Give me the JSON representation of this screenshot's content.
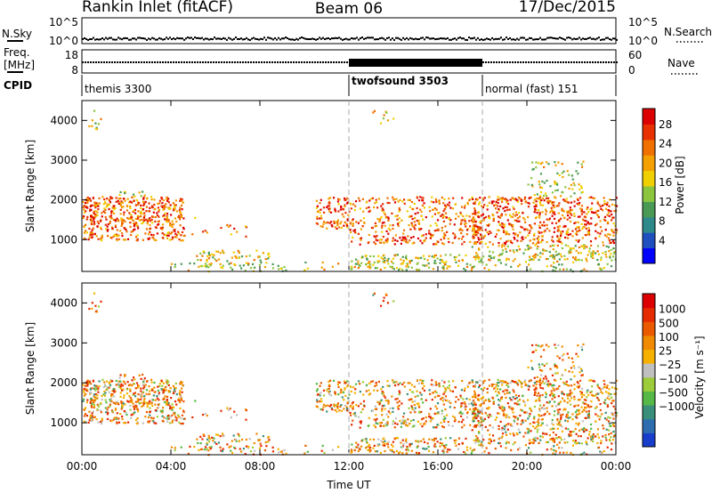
{
  "header": {
    "station": "Rankin Inlet (fitACF)",
    "beam": "Beam 06",
    "date": "17/Dec/2015"
  },
  "status_panels": {
    "nsky_label": "N.Sky",
    "nsearch_label": "N.Search",
    "nsky_ticks": [
      "10^5",
      "10^0"
    ],
    "nsearch_ticks": [
      "10^5",
      "10^0"
    ],
    "freq_label_line1": "Freq.",
    "freq_label_line2": "[MHz]",
    "freq_ticks": [
      "18",
      "8"
    ],
    "nave_label": "Nave",
    "nave_ticks": [
      "60",
      "0"
    ],
    "cpid_label": "CPID",
    "cpid_segments": [
      {
        "name": "themis 3300",
        "start_hour": 0
      },
      {
        "name": "twofsound 3503",
        "start_hour": 12
      },
      {
        "name": "normal (fast) 151",
        "start_hour": 18
      }
    ]
  },
  "chart_data": [
    {
      "type": "heatmap",
      "quantity": "power",
      "ylabel": "Slant Range [km]",
      "xlim": [
        0,
        24
      ],
      "ylim": [
        200,
        4500
      ],
      "yticks": [
        "1000",
        "2000",
        "3000",
        "4000"
      ],
      "colorbar": {
        "label": "Power [dB]",
        "ticks": [
          "4",
          "8",
          "12",
          "16",
          "20",
          "24",
          "28"
        ],
        "colors": [
          "#0000ff",
          "#1f4fbf",
          "#2e8a8a",
          "#4a9a55",
          "#8cc63f",
          "#f0d000",
          "#f4a000",
          "#f07000",
          "#e83000",
          "#dd0000"
        ]
      }
    },
    {
      "type": "heatmap",
      "quantity": "velocity",
      "ylabel": "Slant Range [km]",
      "xlabel": "Time UT",
      "xlim": [
        0,
        24
      ],
      "ylim": [
        200,
        4500
      ],
      "yticks": [
        "1000",
        "2000",
        "3000",
        "4000"
      ],
      "xticks": [
        "00:00",
        "04:00",
        "08:00",
        "12:00",
        "16:00",
        "20:00",
        "00:00"
      ],
      "colorbar": {
        "label": "Velocity [m s⁻¹]",
        "ticks": [
          "1000",
          "500",
          "100",
          "25",
          "−25",
          "−100",
          "−500",
          "−1000"
        ],
        "colors": [
          "#1a3ecc",
          "#2e6eb0",
          "#3a8f7a",
          "#56b846",
          "#9ccc3a",
          "#c0c0c0",
          "#f6b000",
          "#f08a00",
          "#ec5a00",
          "#e62a00",
          "#dd0000"
        ]
      }
    }
  ],
  "scatter_bands": [
    {
      "t0": 0.0,
      "t1": 4.6,
      "r0": 1000,
      "r1": 2100,
      "density": 1.0
    },
    {
      "t0": 1.5,
      "t1": 2.8,
      "r0": 1500,
      "r1": 2250,
      "density": 0.6
    },
    {
      "t0": 0.1,
      "t1": 1.0,
      "r0": 3800,
      "r1": 4300,
      "density": 0.25
    },
    {
      "t0": 4.8,
      "t1": 7.5,
      "r0": 1100,
      "r1": 1600,
      "density": 0.12
    },
    {
      "t0": 5.0,
      "t1": 8.5,
      "r0": 300,
      "r1": 750,
      "density": 0.55
    },
    {
      "t0": 3.5,
      "t1": 11.5,
      "r0": 220,
      "r1": 450,
      "density": 0.2
    },
    {
      "t0": 10.5,
      "t1": 12.0,
      "r0": 1300,
      "r1": 2100,
      "density": 0.8
    },
    {
      "t0": 12.0,
      "t1": 18.0,
      "r0": 900,
      "r1": 2100,
      "density": 0.6
    },
    {
      "t0": 12.0,
      "t1": 18.0,
      "r0": 250,
      "r1": 650,
      "density": 0.75
    },
    {
      "t0": 13.0,
      "t1": 14.0,
      "r0": 3900,
      "r1": 4300,
      "density": 0.25
    },
    {
      "t0": 17.5,
      "t1": 24.0,
      "r0": 500,
      "r1": 2100,
      "density": 0.75
    },
    {
      "t0": 20.0,
      "t1": 22.5,
      "r0": 1800,
      "r1": 3000,
      "density": 0.35
    },
    {
      "t0": 18.0,
      "t1": 24.0,
      "r0": 220,
      "r1": 500,
      "density": 0.3
    }
  ]
}
